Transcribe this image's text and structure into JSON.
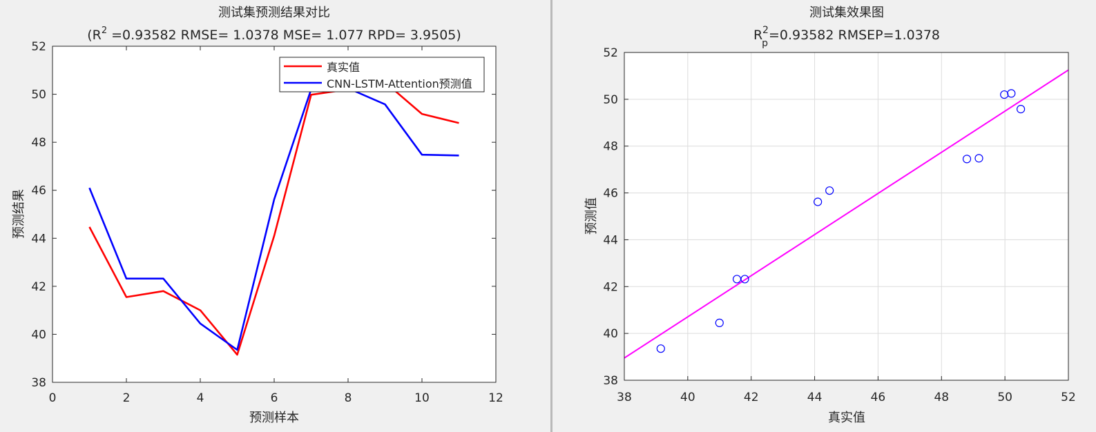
{
  "chart_data": [
    {
      "type": "line",
      "title": "测试集预测结果对比",
      "subtitle_parts": {
        "prefix": "(R",
        "sup": "2",
        "rest": " =0.93582 RMSE= 1.0378 MSE= 1.077 RPD= 3.9505)"
      },
      "xlabel": "预测样本",
      "ylabel": "预测结果",
      "xlim": [
        0,
        12
      ],
      "ylim": [
        38,
        52
      ],
      "xticks": [
        0,
        2,
        4,
        6,
        8,
        10,
        12
      ],
      "yticks": [
        38,
        40,
        42,
        44,
        46,
        48,
        50,
        52
      ],
      "grid": false,
      "legend_position": "top-right",
      "x": [
        1,
        2,
        3,
        4,
        5,
        6,
        7,
        8,
        9,
        10,
        11
      ],
      "series": [
        {
          "name": "真实值",
          "color": "#ff0000",
          "values": [
            44.47,
            41.55,
            41.8,
            41.0,
            39.15,
            44.1,
            49.98,
            50.2,
            50.5,
            49.18,
            48.8
          ]
        },
        {
          "name": "CNN-LSTM-Attention预测值",
          "color": "#0000ff",
          "values": [
            46.1,
            42.32,
            42.32,
            40.45,
            39.35,
            45.62,
            50.2,
            50.25,
            49.58,
            47.48,
            47.45
          ]
        }
      ]
    },
    {
      "type": "scatter",
      "title": "测试集效果图",
      "subtitle_parts": {
        "prefix": "R",
        "sub": "p",
        "sup": "2",
        "rest": "=0.93582  RMSEP=1.0378"
      },
      "xlabel": "真实值",
      "ylabel": "预测值",
      "xlim": [
        38,
        52
      ],
      "ylim": [
        38,
        52
      ],
      "xticks": [
        38,
        40,
        42,
        44,
        46,
        48,
        50,
        52
      ],
      "yticks": [
        38,
        40,
        42,
        44,
        46,
        48,
        50,
        52
      ],
      "grid": true,
      "points_color": "#0000ff",
      "fit_line_color": "#ff00ff",
      "fit_line": {
        "x": [
          38,
          52
        ],
        "y": [
          38.95,
          51.25
        ]
      },
      "points": [
        {
          "x": 44.47,
          "y": 46.1
        },
        {
          "x": 41.55,
          "y": 42.32
        },
        {
          "x": 41.8,
          "y": 42.32
        },
        {
          "x": 41.0,
          "y": 40.45
        },
        {
          "x": 39.15,
          "y": 39.35
        },
        {
          "x": 44.1,
          "y": 45.62
        },
        {
          "x": 49.98,
          "y": 50.2
        },
        {
          "x": 50.2,
          "y": 50.25
        },
        {
          "x": 50.5,
          "y": 49.58
        },
        {
          "x": 49.18,
          "y": 47.48
        },
        {
          "x": 48.8,
          "y": 47.45
        }
      ]
    }
  ]
}
